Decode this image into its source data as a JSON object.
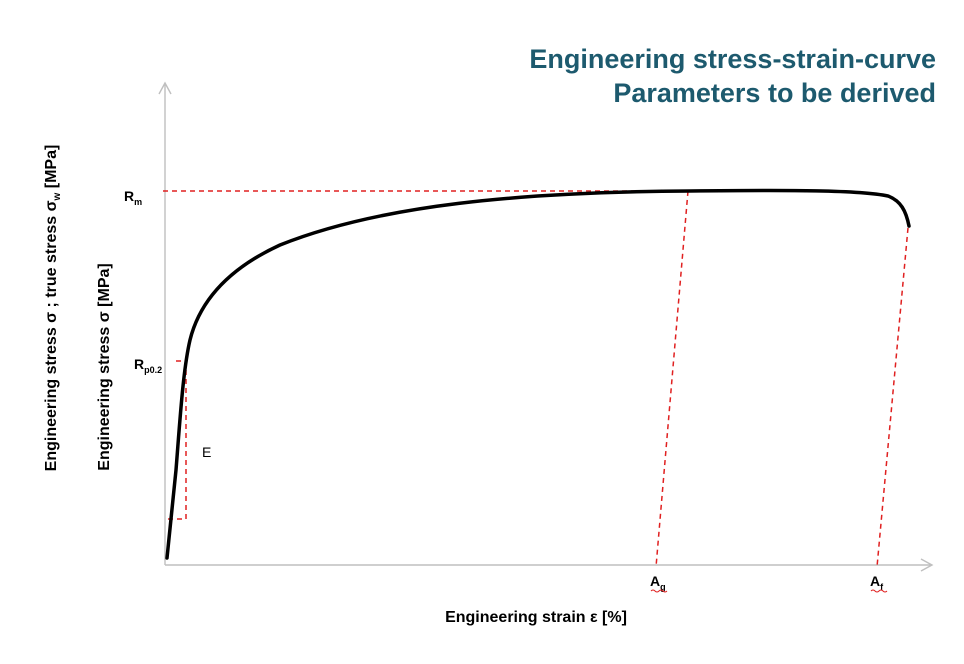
{
  "title": {
    "line1": "Engineering stress-strain-curve",
    "line2": "Parameters to be derived"
  },
  "axes": {
    "xlabel": "Engineering strain ε [%]",
    "ylabel_inner": "Engineering stress σ [MPa]",
    "ylabel_outer_prefix": "Engineering stress σ ; true stress σ",
    "ylabel_outer_sub": "w",
    "ylabel_outer_suffix": " [MPa]"
  },
  "markers": {
    "rm_main": "R",
    "rm_sub": "m",
    "rp_main": "R",
    "rp_sub": "p0.2",
    "e_label": "E",
    "ag_main": "A",
    "ag_sub": "g",
    "af_main": "A",
    "af_sub": "f"
  },
  "colors": {
    "title": "#1d5a6e",
    "curve": "#000000",
    "guides": "#e02020",
    "axes": "#bfbfbf"
  }
}
